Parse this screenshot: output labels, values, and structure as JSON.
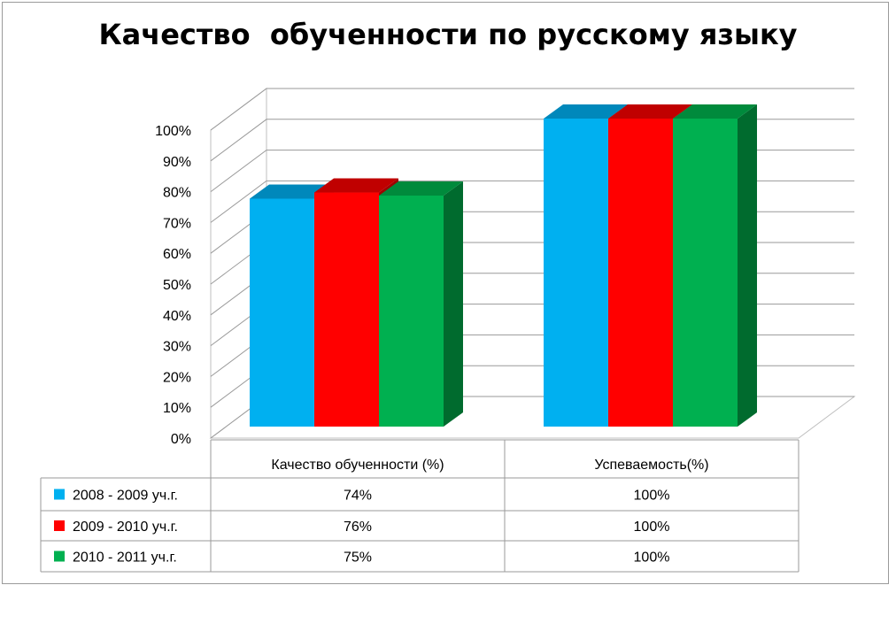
{
  "chart_data": {
    "type": "bar",
    "title": "Качество  обученности по русскому языку",
    "categories": [
      "Качество обученности (%)",
      "Успеваемость(%)"
    ],
    "series": [
      {
        "name": "2008 - 2009 уч.г.",
        "values": [
          74,
          100
        ],
        "labels": [
          "74%",
          "100%"
        ],
        "color": "#00b0f0",
        "top_color": "#0088bb",
        "side_color": "#0078a8"
      },
      {
        "name": "2009 - 2010 уч.г.",
        "values": [
          76,
          100
        ],
        "labels": [
          "76%",
          "100%"
        ],
        "color": "#ff0000",
        "top_color": "#c00000",
        "side_color": "#a00000"
      },
      {
        "name": "2010 - 2011 уч.г.",
        "values": [
          75,
          100
        ],
        "labels": [
          "75%",
          "100%"
        ],
        "color": "#00b050",
        "top_color": "#008a3c",
        "side_color": "#006b2e"
      }
    ],
    "y_ticks": [
      "0%",
      "10%",
      "20%",
      "30%",
      "40%",
      "50%",
      "60%",
      "70%",
      "80%",
      "90%",
      "100%"
    ],
    "ylim": [
      0,
      100
    ],
    "grid": true,
    "data_table": true,
    "legend": "in data table"
  }
}
